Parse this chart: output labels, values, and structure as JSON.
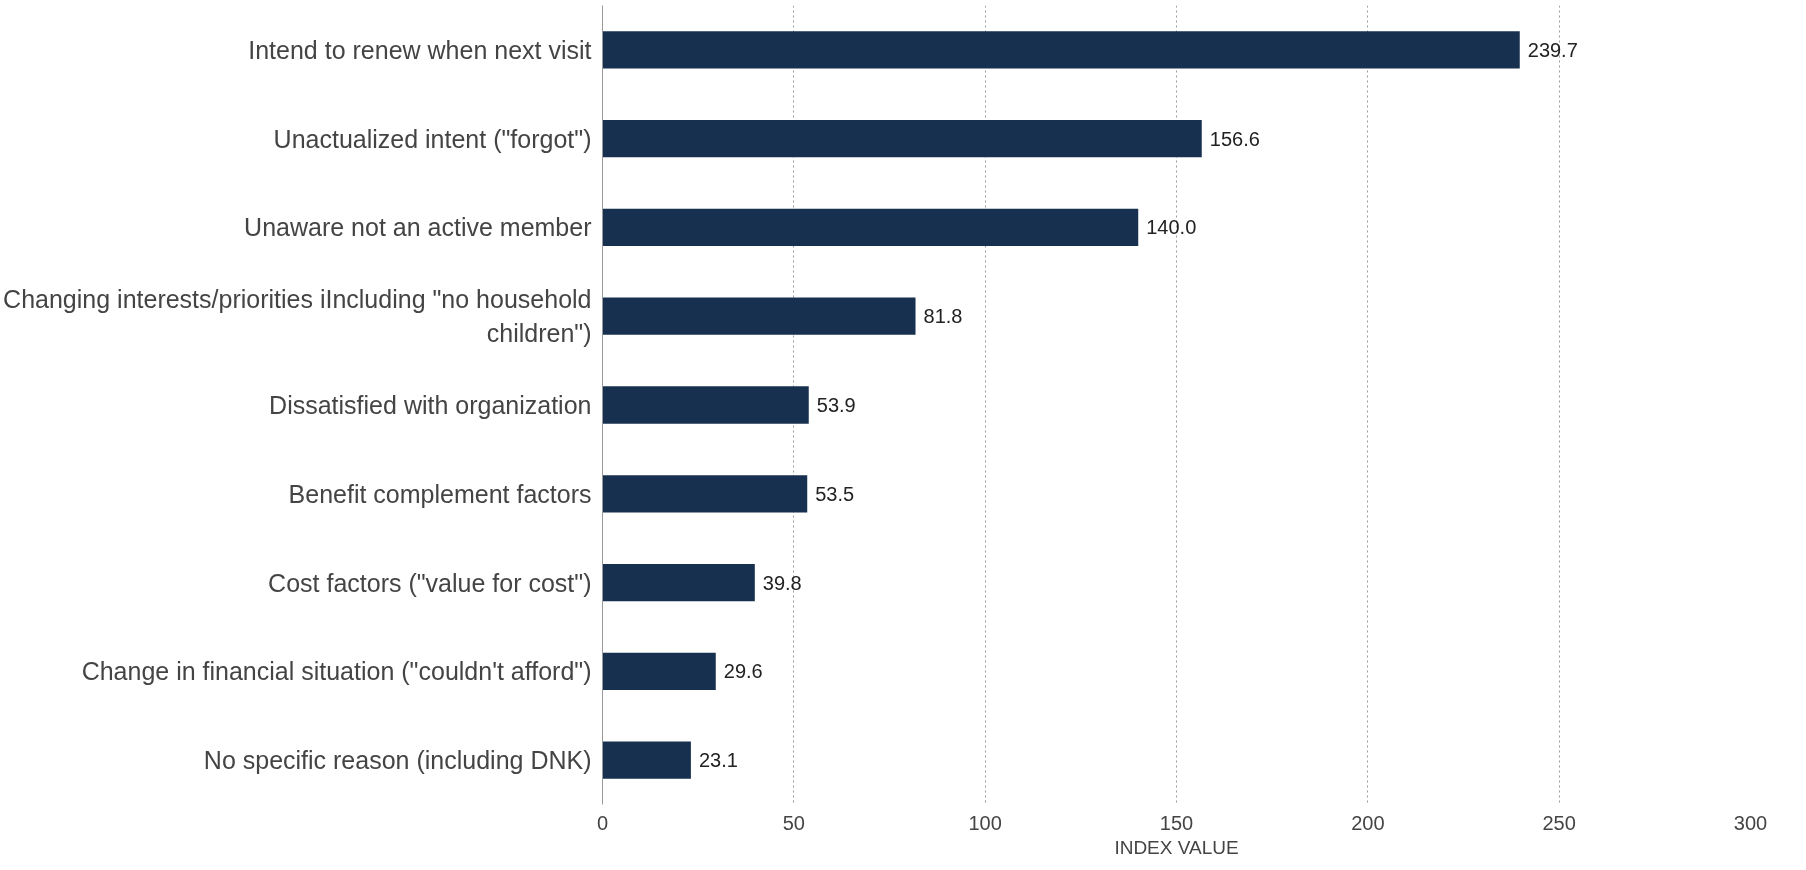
{
  "chart_data": {
    "type": "bar",
    "orientation": "horizontal",
    "categories": [
      "Intend to renew when next visit",
      "Unactualized intent (\"forgot\")",
      "Unaware not an active member",
      "Changing interests/priorities iIncluding \"no household children\")",
      "Dissatisfied with organization",
      "Benefit complement factors",
      "Cost factors (\"value for cost\")",
      "Change in financial situation (\"couldn't afford\")",
      "No specific reason (including DNK)"
    ],
    "values": [
      239.7,
      156.6,
      140.0,
      81.8,
      53.9,
      53.5,
      39.8,
      29.6,
      23.1
    ],
    "color": "#17304f",
    "xlim": [
      0,
      300
    ],
    "xticks": [
      0,
      50,
      100,
      150,
      200,
      250,
      300
    ],
    "value_labels": [
      "239.7",
      "156.6",
      "140.0",
      "81.8",
      "53.9",
      "53.5",
      "39.8",
      "29.6",
      "23.1"
    ],
    "xlabel": "INDEX VALUE",
    "grid": "x"
  }
}
